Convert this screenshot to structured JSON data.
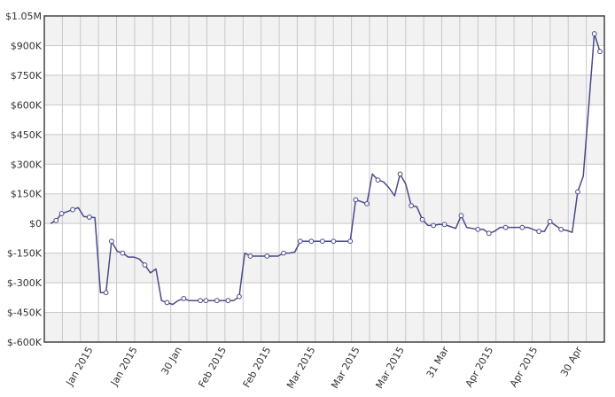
{
  "chart_data": {
    "type": "line",
    "title": "",
    "xlabel": "",
    "ylabel": "",
    "ylim": [
      -600000,
      1050000
    ],
    "y_ticks": [
      -600000,
      -450000,
      -300000,
      -150000,
      0,
      150000,
      300000,
      450000,
      600000,
      750000,
      900000,
      1050000
    ],
    "y_tick_labels": [
      "$-600K",
      "$-450K",
      "$-300K",
      "$-150K",
      "$0",
      "$150K",
      "$300K",
      "$450K",
      "$600K",
      "$750K",
      "$900K",
      "$1.05M"
    ],
    "x_tick_labels": [
      "Jan 2015",
      "Jan 2015",
      "30 Jan",
      "Feb 2015",
      "Feb 2015",
      "Mar 2015",
      "Mar 2015",
      "Mar 2015",
      "31 Mar",
      "Apr 2015",
      "Apr 2015",
      "30 Apr"
    ],
    "grid": true,
    "legend": "none",
    "colors": {
      "line": "#4a4a8a",
      "marker_fill": "#ffffff",
      "band": "#f2f2f2",
      "grid": "#c8c8c8",
      "plot_border": "#444444"
    },
    "series": [
      {
        "values": [
          0,
          15000,
          50000,
          60000,
          70000,
          80000,
          35000,
          32000,
          30000,
          -350000,
          -350000,
          -90000,
          -140000,
          -150000,
          -170000,
          -170000,
          -180000,
          -210000,
          -250000,
          -230000,
          -390000,
          -400000,
          -410000,
          -390000,
          -380000,
          -390000,
          -390000,
          -390000,
          -390000,
          -390000,
          -390000,
          -390000,
          -390000,
          -390000,
          -370000,
          -150000,
          -165000,
          -165000,
          -165000,
          -165000,
          -165000,
          -165000,
          -150000,
          -150000,
          -145000,
          -90000,
          -90000,
          -90000,
          -90000,
          -90000,
          -90000,
          -90000,
          -90000,
          -90000,
          -90000,
          120000,
          110000,
          100000,
          250000,
          220000,
          210000,
          180000,
          140000,
          250000,
          200000,
          90000,
          85000,
          20000,
          -10000,
          -10000,
          -5000,
          -5000,
          -15000,
          -25000,
          40000,
          -20000,
          -25000,
          -30000,
          -30000,
          -50000,
          -40000,
          -20000,
          -20000,
          -20000,
          -20000,
          -20000,
          -20000,
          -30000,
          -40000,
          -40000,
          10000,
          -10000,
          -30000,
          -35000,
          -45000,
          160000,
          240000,
          600000,
          960000,
          870000
        ],
        "markers": [
          1,
          2,
          4,
          7,
          10,
          11,
          13,
          17,
          21,
          24,
          27,
          28,
          30,
          32,
          34,
          36,
          39,
          42,
          45,
          47,
          49,
          51,
          54,
          55,
          57,
          59,
          63,
          65,
          67,
          69,
          71,
          74,
          77,
          79,
          82,
          85,
          88,
          90,
          92,
          95,
          98,
          99
        ]
      }
    ]
  }
}
